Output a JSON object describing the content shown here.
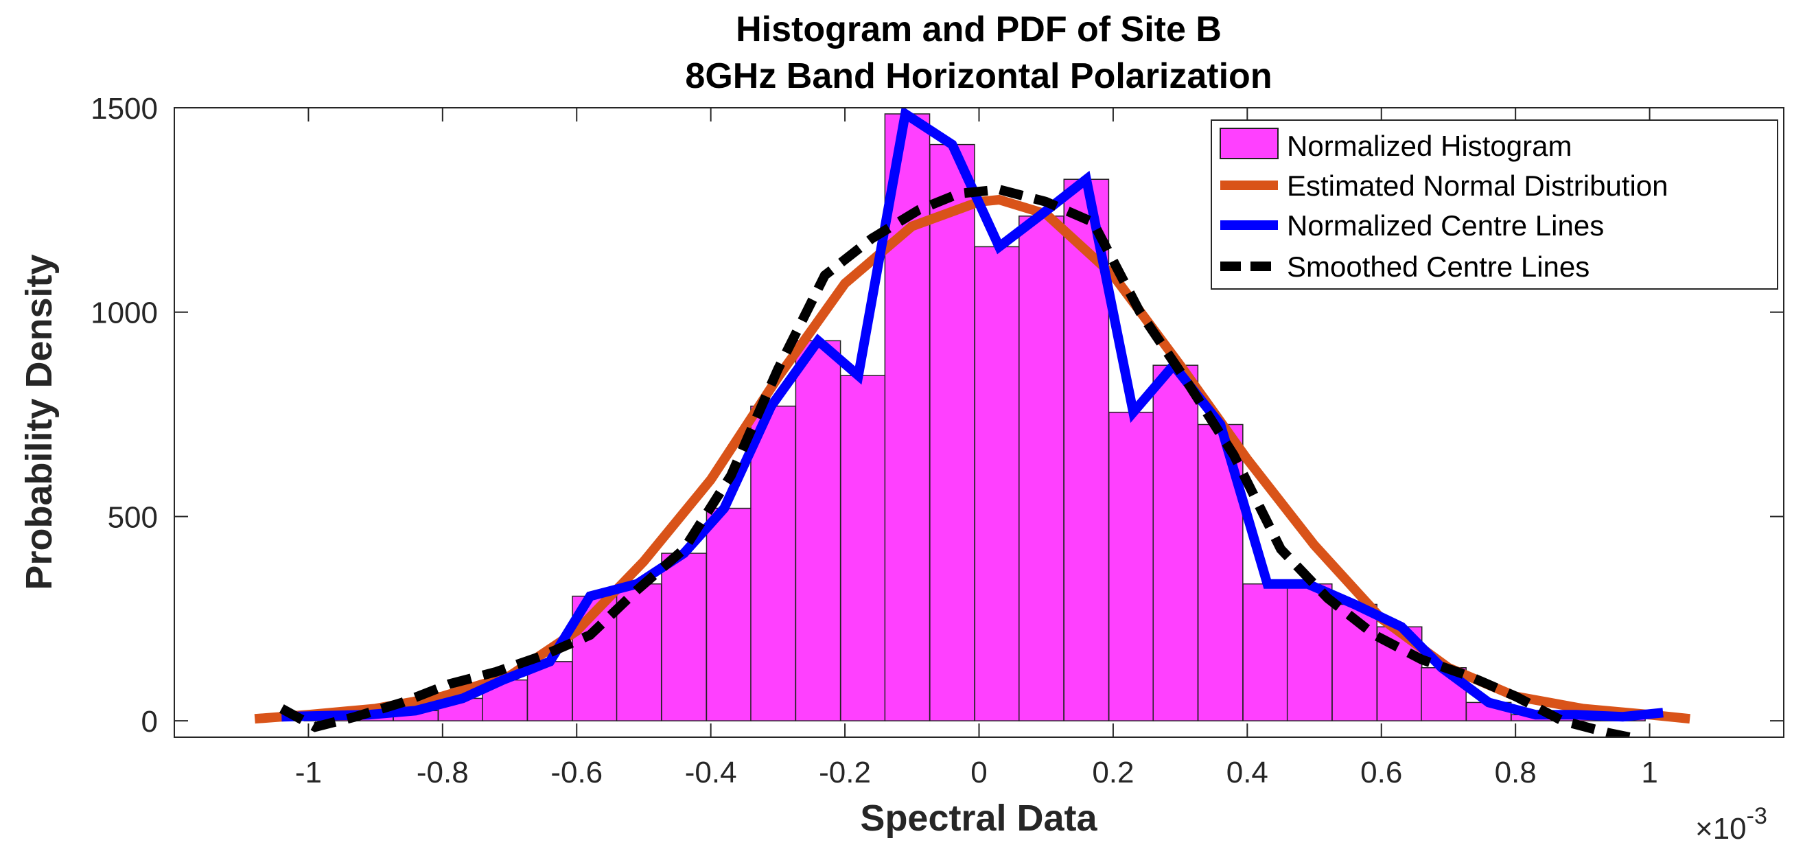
{
  "chart_data": {
    "type": "bar",
    "title": "Histogram and PDF of Site B",
    "subtitle": "8GHz Band Horizontal Polarization",
    "xlabel": "Spectral Data",
    "ylabel": "Probability Density",
    "x_exponent_base": "×10",
    "x_exponent_power": "-3",
    "xlim": [
      -1.2,
      1.2
    ],
    "ylim": [
      -40,
      1500
    ],
    "xticks": [
      -1,
      -0.8,
      -0.6,
      -0.4,
      -0.2,
      0,
      0.2,
      0.4,
      0.6,
      0.8,
      1
    ],
    "xtick_labels": [
      "-1",
      "-0.8",
      "-0.6",
      "-0.4",
      "-0.2",
      "0",
      "0.2",
      "0.4",
      "0.6",
      "0.8",
      "1"
    ],
    "yticks": [
      0,
      500,
      1000,
      1500
    ],
    "ytick_labels": [
      "0",
      "500",
      "1000",
      "1500"
    ],
    "grid": false,
    "legend_position": "top-right",
    "legend": [
      {
        "label": "Normalized Histogram",
        "kind": "patch",
        "color": "#ff40ff"
      },
      {
        "label": "Estimated Normal Distribution",
        "kind": "line",
        "color": "#d95319"
      },
      {
        "label": "Normalized Centre Lines",
        "kind": "line",
        "color": "#0000ff"
      },
      {
        "label": "Smoothed Centre Lines",
        "kind": "dashed",
        "color": "#000000"
      }
    ],
    "colors": {
      "histogram_fill": "#ff40ff",
      "histogram_edge": "#222222",
      "normal": "#d95319",
      "centre": "#0000ff",
      "smoothed": "#000000"
    },
    "histogram": {
      "bin_width": 0.0667,
      "bin_centers": [
        -0.973,
        -0.907,
        -0.84,
        -0.773,
        -0.707,
        -0.64,
        -0.573,
        -0.507,
        -0.44,
        -0.373,
        -0.307,
        -0.24,
        -0.173,
        -0.107,
        -0.04,
        0.027,
        0.093,
        0.16,
        0.227,
        0.293,
        0.36,
        0.427,
        0.493,
        0.56,
        0.627,
        0.693,
        0.76,
        0.827,
        0.893,
        0.96
      ],
      "values": [
        12,
        15,
        25,
        55,
        100,
        145,
        305,
        335,
        410,
        520,
        770,
        930,
        845,
        1485,
        1410,
        1160,
        1235,
        1325,
        755,
        870,
        725,
        335,
        335,
        285,
        230,
        130,
        45,
        15,
        15,
        10
      ]
    },
    "series": [
      {
        "name": "Estimated Normal Distribution",
        "x": [
          -1.08,
          -1.0,
          -0.9,
          -0.8,
          -0.7,
          -0.6,
          -0.5,
          -0.4,
          -0.3,
          -0.2,
          -0.1,
          0.0,
          0.03,
          0.1,
          0.2,
          0.3,
          0.4,
          0.5,
          0.6,
          0.7,
          0.8,
          0.9,
          1.0,
          1.06
        ],
        "y": [
          5,
          15,
          30,
          60,
          110,
          220,
          390,
          590,
          840,
          1070,
          1210,
          1270,
          1275,
          1240,
          1090,
          870,
          640,
          430,
          250,
          130,
          60,
          30,
          15,
          5
        ]
      },
      {
        "name": "Normalized Centre Lines",
        "x": [
          -1.04,
          -0.91,
          -0.84,
          -0.77,
          -0.71,
          -0.64,
          -0.58,
          -0.51,
          -0.44,
          -0.38,
          -0.31,
          -0.24,
          -0.18,
          -0.11,
          -0.04,
          0.03,
          0.09,
          0.16,
          0.23,
          0.29,
          0.36,
          0.43,
          0.49,
          0.56,
          0.63,
          0.69,
          0.76,
          0.83,
          0.89,
          0.96,
          1.02
        ],
        "y": [
          10,
          15,
          25,
          55,
          100,
          145,
          305,
          335,
          410,
          520,
          770,
          930,
          845,
          1485,
          1410,
          1160,
          1235,
          1325,
          755,
          870,
          725,
          335,
          335,
          285,
          230,
          130,
          45,
          15,
          15,
          10,
          20
        ]
      },
      {
        "name": "Smoothed Centre Lines",
        "x": [
          -1.04,
          -0.99,
          -0.93,
          -0.86,
          -0.79,
          -0.72,
          -0.65,
          -0.58,
          -0.51,
          -0.44,
          -0.37,
          -0.3,
          -0.23,
          -0.16,
          -0.09,
          -0.03,
          0.03,
          0.1,
          0.17,
          0.24,
          0.31,
          0.38,
          0.45,
          0.52,
          0.59,
          0.66,
          0.73,
          0.8,
          0.87,
          0.94,
          0.97
        ],
        "y": [
          30,
          -15,
          10,
          45,
          90,
          120,
          160,
          210,
          320,
          420,
          600,
          860,
          1090,
          1180,
          1250,
          1290,
          1300,
          1270,
          1220,
          1000,
          830,
          650,
          420,
          300,
          210,
          150,
          110,
          60,
          0,
          -30,
          -40
        ]
      }
    ]
  }
}
